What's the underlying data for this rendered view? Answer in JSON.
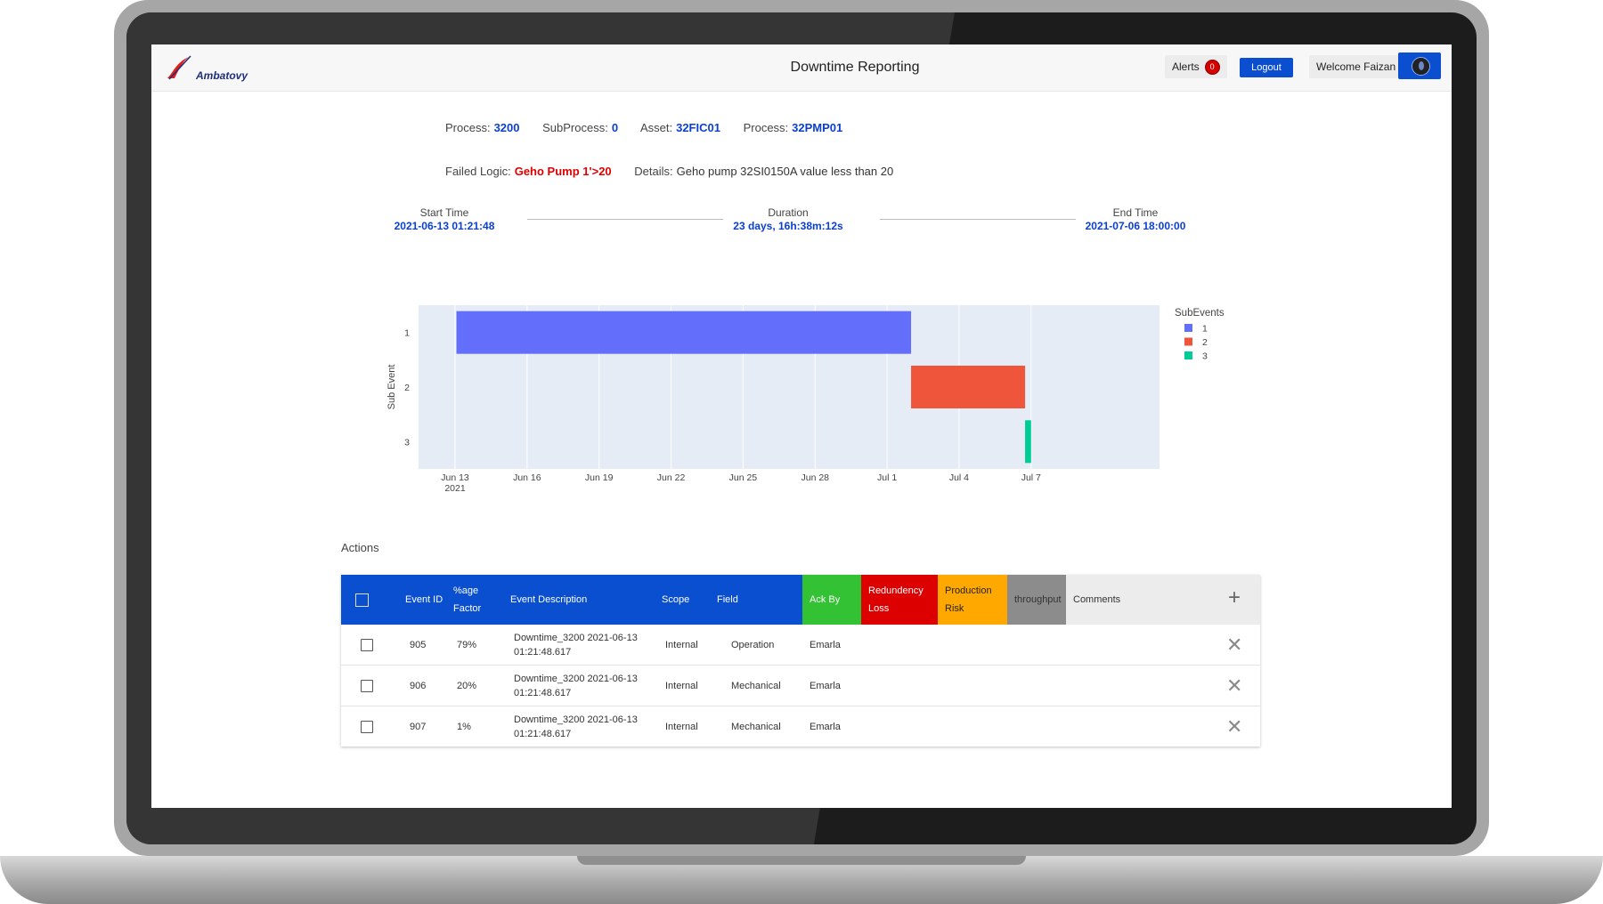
{
  "header": {
    "logo_text": "Ambatovy",
    "title": "Downtime Reporting",
    "alerts_label": "Alerts",
    "alerts_count": "0",
    "logout_label": "Logout",
    "welcome_text": "Welcome Faizan"
  },
  "info": {
    "process_label": "Process:",
    "process_value": "3200",
    "subprocess_label": "SubProcess:",
    "subprocess_value": "0",
    "asset_label": "Asset:",
    "asset_value": "32FIC01",
    "process2_label": "Process:",
    "process2_value": "32PMP01",
    "failed_logic_label": "Failed Logic:",
    "failed_logic_value": "Geho Pump 1'>20",
    "details_label": "Details:",
    "details_value": "Geho pump 32SI0150A value less than 20"
  },
  "timeline": {
    "start_label": "Start Time",
    "start_value": "2021-06-13 01:21:48",
    "duration_label": "Duration",
    "duration_value": "23 days, 16h:38m:12s",
    "end_label": "End Time",
    "end_value": "2021-07-06 18:00:00"
  },
  "chart_data": {
    "type": "gantt",
    "ylabel": "Sub Event",
    "legend_title": "SubEvents",
    "legend_position": "top-right",
    "x_ticks": [
      "Jun 13",
      "Jun 16",
      "Jun 19",
      "Jun 22",
      "Jun 25",
      "Jun 28",
      "Jul 1",
      "Jul 4",
      "Jul 7"
    ],
    "x_tick_year": "2021",
    "y_categories": [
      "1",
      "2",
      "3"
    ],
    "series": [
      {
        "name": "1",
        "category": "1",
        "start": "2021-06-13 01:21:48",
        "end": "2021-07-02 00:00:00",
        "color": "#636efa"
      },
      {
        "name": "2",
        "category": "2",
        "start": "2021-07-02 00:00:00",
        "end": "2021-07-06 18:00:00",
        "color": "#ef553b"
      },
      {
        "name": "3",
        "category": "3",
        "start": "2021-07-06 18:00:00",
        "end": "2021-07-07 00:00:00",
        "color": "#00cc96"
      }
    ],
    "grid": true,
    "plot_bg": "#e5ecf6"
  },
  "actions": {
    "title": "Actions",
    "columns": {
      "event_id": "Event ID",
      "age_factor": "%age Factor",
      "description": "Event Description",
      "scope": "Scope",
      "field": "Field",
      "ack_by": "Ack By",
      "redundancy": "Redundency Loss",
      "production": "Production Risk",
      "throughput": "throughput",
      "comments": "Comments"
    },
    "rows": [
      {
        "id": "905",
        "factor": "79%",
        "description": "Downtime_3200 2021-06-13 01:21:48.617",
        "scope": "Internal",
        "field": "Operation",
        "ack_by": "Emarla"
      },
      {
        "id": "906",
        "factor": "20%",
        "description": "Downtime_3200 2021-06-13 01:21:48.617",
        "scope": "Internal",
        "field": "Mechanical",
        "ack_by": "Emarla"
      },
      {
        "id": "907",
        "factor": "1%",
        "description": "Downtime_3200 2021-06-13 01:21:48.617",
        "scope": "Internal",
        "field": "Mechanical",
        "ack_by": "Emarla"
      }
    ]
  },
  "colors": {
    "primary_blue": "#0a4fcf",
    "value_blue": "#0b3fd0",
    "failed_red": "#e00000",
    "ack_green": "#33c233",
    "redundancy_red": "#dd0000",
    "production_orange": "#ffa800",
    "throughput_gray": "#8c8c8c"
  }
}
